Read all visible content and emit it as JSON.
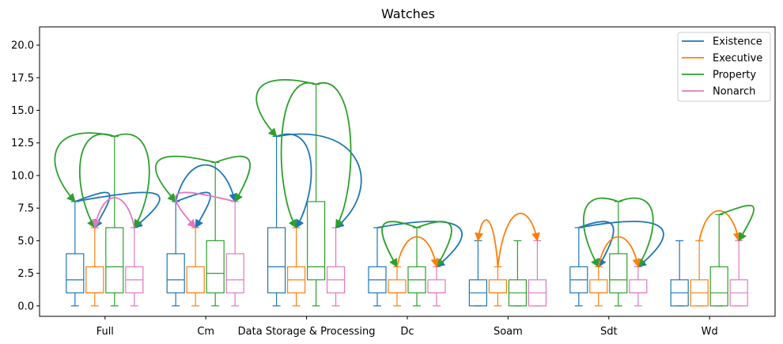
{
  "chart_data": {
    "type": "box",
    "title": "Watches",
    "ylim": [
      -0.8,
      21.4
    ],
    "yticks": [
      "0.0",
      "2.5",
      "5.0",
      "7.5",
      "10.0",
      "12.5",
      "15.0",
      "17.5",
      "20.0"
    ],
    "categories": [
      "Full",
      "Cm",
      "Data Storage & Processing",
      "Dc",
      "Soam",
      "Sdt",
      "Wd"
    ],
    "legend": {
      "placement": "top-right"
    },
    "series": [
      {
        "name": "Existence",
        "color": "#1f77b4",
        "boxes": [
          {
            "whislo": 0,
            "q1": 1,
            "med": 2,
            "q3": 4,
            "whishi": 8
          },
          {
            "whislo": 0,
            "q1": 1,
            "med": 2,
            "q3": 4,
            "whishi": 8
          },
          {
            "whislo": 0,
            "q1": 1,
            "med": 3,
            "q3": 6,
            "whishi": 13
          },
          {
            "whislo": 0,
            "q1": 1,
            "med": 2,
            "q3": 3,
            "whishi": 6
          },
          {
            "whislo": 0,
            "q1": 0,
            "med": 1,
            "q3": 2,
            "whishi": 5
          },
          {
            "whislo": 0,
            "q1": 1,
            "med": 2,
            "q3": 3,
            "whishi": 6
          },
          {
            "whislo": 0,
            "q1": 0,
            "med": 1,
            "q3": 2,
            "whishi": 5
          }
        ]
      },
      {
        "name": "Executive",
        "color": "#ff7f0e",
        "boxes": [
          {
            "whislo": 0,
            "q1": 1,
            "med": 1,
            "q3": 3,
            "whishi": 6
          },
          {
            "whislo": 0,
            "q1": 1,
            "med": 1,
            "q3": 3,
            "whishi": 6
          },
          {
            "whislo": 0,
            "q1": 1,
            "med": 2,
            "q3": 3,
            "whishi": 6
          },
          {
            "whislo": 0,
            "q1": 1,
            "med": 1,
            "q3": 2,
            "whishi": 3
          },
          {
            "whislo": 0,
            "q1": 1,
            "med": 1,
            "q3": 2,
            "whishi": 3
          },
          {
            "whislo": 0,
            "q1": 1,
            "med": 1,
            "q3": 2,
            "whishi": 3
          },
          {
            "whislo": 0,
            "q1": 0,
            "med": 1,
            "q3": 2,
            "whishi": 5
          }
        ]
      },
      {
        "name": "Property",
        "color": "#2ca02c",
        "boxes": [
          {
            "whislo": 0,
            "q1": 1,
            "med": 3,
            "q3": 6,
            "whishi": 13
          },
          {
            "whislo": 0,
            "q1": 1,
            "med": 2.5,
            "q3": 5,
            "whishi": 11
          },
          {
            "whislo": 0,
            "q1": 2,
            "med": 3,
            "q3": 8,
            "whishi": 17
          },
          {
            "whislo": 0,
            "q1": 1,
            "med": 2,
            "q3": 3,
            "whishi": 6
          },
          {
            "whislo": 0,
            "q1": 0,
            "med": 1,
            "q3": 2,
            "whishi": 5
          },
          {
            "whislo": 0,
            "q1": 1,
            "med": 2,
            "q3": 4,
            "whishi": 8
          },
          {
            "whislo": 0,
            "q1": 0,
            "med": 1,
            "q3": 3,
            "whishi": 7
          }
        ]
      },
      {
        "name": "Nonarch",
        "color": "#e377c2",
        "boxes": [
          {
            "whislo": 0,
            "q1": 1,
            "med": 2,
            "q3": 3,
            "whishi": 6
          },
          {
            "whislo": 0,
            "q1": 1,
            "med": 2,
            "q3": 4,
            "whishi": 8
          },
          {
            "whislo": 0,
            "q1": 1,
            "med": 2,
            "q3": 3,
            "whishi": 6
          },
          {
            "whislo": 0,
            "q1": 1,
            "med": 1,
            "q3": 2,
            "whishi": 3
          },
          {
            "whislo": 0,
            "q1": 0,
            "med": 1,
            "q3": 2,
            "whishi": 5
          },
          {
            "whislo": 0,
            "q1": 1,
            "med": 1,
            "q3": 2,
            "whishi": 3
          },
          {
            "whislo": 0,
            "q1": 0,
            "med": 1,
            "q3": 2,
            "whishi": 5
          }
        ]
      }
    ],
    "arrows": [
      {
        "category": 0,
        "from_series": 0,
        "to_series": 1,
        "color": "#1f77b4"
      },
      {
        "category": 0,
        "from_series": 0,
        "to_series": 3,
        "color": "#1f77b4"
      },
      {
        "category": 0,
        "from_series": 2,
        "to_series": 0,
        "color": "#2ca02c"
      },
      {
        "category": 0,
        "from_series": 2,
        "to_series": 1,
        "color": "#2ca02c"
      },
      {
        "category": 0,
        "from_series": 2,
        "to_series": 3,
        "color": "#2ca02c"
      },
      {
        "category": 0,
        "from_series": 3,
        "to_series": 1,
        "color": "#e377c2"
      },
      {
        "category": 1,
        "from_series": 0,
        "to_series": 1,
        "color": "#1f77b4"
      },
      {
        "category": 1,
        "from_series": 0,
        "to_series": 3,
        "color": "#1f77b4"
      },
      {
        "category": 1,
        "from_series": 2,
        "to_series": 0,
        "color": "#2ca02c"
      },
      {
        "category": 1,
        "from_series": 2,
        "to_series": 3,
        "color": "#2ca02c"
      },
      {
        "category": 1,
        "from_series": 3,
        "to_series": 1,
        "color": "#e377c2"
      },
      {
        "category": 2,
        "from_series": 0,
        "to_series": 1,
        "color": "#1f77b4"
      },
      {
        "category": 2,
        "from_series": 0,
        "to_series": 3,
        "color": "#1f77b4"
      },
      {
        "category": 2,
        "from_series": 2,
        "to_series": 0,
        "color": "#2ca02c"
      },
      {
        "category": 2,
        "from_series": 2,
        "to_series": 1,
        "color": "#2ca02c"
      },
      {
        "category": 2,
        "from_series": 2,
        "to_series": 3,
        "color": "#2ca02c"
      },
      {
        "category": 3,
        "from_series": 0,
        "to_series": 3,
        "color": "#1f77b4"
      },
      {
        "category": 3,
        "from_series": 2,
        "to_series": 1,
        "color": "#2ca02c"
      },
      {
        "category": 3,
        "from_series": 2,
        "to_series": 3,
        "color": "#2ca02c"
      },
      {
        "category": 3,
        "from_series": 1,
        "to_series": 3,
        "color": "#ff7f0e"
      },
      {
        "category": 4,
        "from_series": 1,
        "to_series": 0,
        "color": "#ff7f0e"
      },
      {
        "category": 4,
        "from_series": 1,
        "to_series": 3,
        "color": "#ff7f0e"
      },
      {
        "category": 5,
        "from_series": 0,
        "to_series": 1,
        "color": "#1f77b4"
      },
      {
        "category": 5,
        "from_series": 0,
        "to_series": 3,
        "color": "#1f77b4"
      },
      {
        "category": 5,
        "from_series": 2,
        "to_series": 1,
        "color": "#2ca02c"
      },
      {
        "category": 5,
        "from_series": 2,
        "to_series": 3,
        "color": "#2ca02c"
      },
      {
        "category": 5,
        "from_series": 1,
        "to_series": 3,
        "color": "#ff7f0e"
      },
      {
        "category": 6,
        "from_series": 1,
        "to_series": 3,
        "color": "#ff7f0e"
      },
      {
        "category": 6,
        "from_series": 2,
        "to_series": 3,
        "color": "#2ca02c"
      }
    ]
  }
}
